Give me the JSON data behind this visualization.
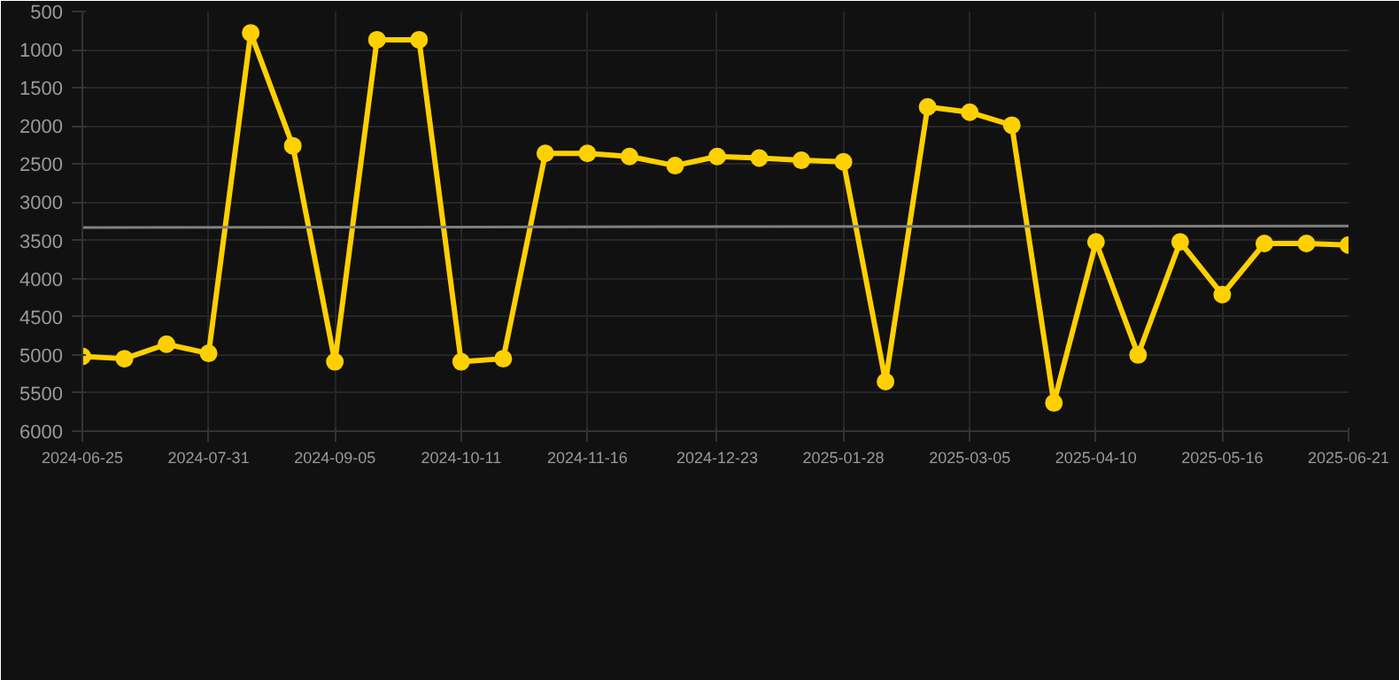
{
  "chart_data": {
    "type": "line",
    "x": [
      "2024-06-25",
      "2024-07-07",
      "2024-07-19",
      "2024-07-31",
      "2024-08-12",
      "2024-08-24",
      "2024-09-05",
      "2024-09-17",
      "2024-09-29",
      "2024-10-11",
      "2024-10-23",
      "2024-11-04",
      "2024-11-16",
      "2024-11-28",
      "2024-12-11",
      "2024-12-23",
      "2025-01-04",
      "2025-01-16",
      "2025-01-28",
      "2025-02-09",
      "2025-02-21",
      "2025-03-05",
      "2025-03-17",
      "2025-03-29",
      "2025-04-10",
      "2025-04-22",
      "2025-05-04",
      "2025-05-16",
      "2025-05-28",
      "2025-06-09",
      "2025-06-21"
    ],
    "series": [
      {
        "color": "#ffd000",
        "marker": "circle",
        "values": [
          5020,
          5050,
          4860,
          4980,
          780,
          2260,
          5090,
          870,
          870,
          5090,
          5050,
          2360,
          2360,
          2400,
          2520,
          2400,
          2420,
          2450,
          2470,
          5350,
          1750,
          1820,
          1990,
          5630,
          3520,
          5000,
          3520,
          4210,
          3540,
          3540,
          3560
        ]
      },
      {
        "type": "line",
        "color": "#808080",
        "marker": "none",
        "x": [
          "2024-06-25",
          "2025-06-21"
        ],
        "values": [
          3330,
          3310
        ]
      }
    ],
    "xlim": [
      "2024-06-25",
      "2025-06-21"
    ],
    "xticks": [
      "2024-06-25",
      "2024-07-31",
      "2024-09-05",
      "2024-10-11",
      "2024-11-16",
      "2024-12-23",
      "2025-01-28",
      "2025-03-05",
      "2025-04-10",
      "2025-05-16",
      "2025-06-21"
    ],
    "ylim": [
      6000,
      500
    ],
    "yticks": [
      500,
      1000,
      1500,
      2000,
      2500,
      3000,
      3500,
      4000,
      4500,
      5000,
      5500,
      6000
    ],
    "grid": true
  }
}
